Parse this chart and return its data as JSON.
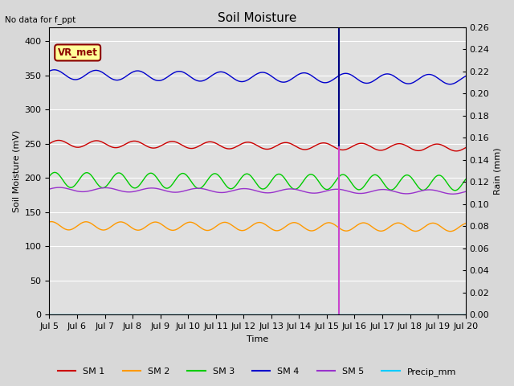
{
  "title": "Soil Moisture",
  "no_data_text": "No data for f_ppt",
  "vr_met_label": "VR_met",
  "xlabel": "Time",
  "ylabel_left": "Soil Moisture (mV)",
  "ylabel_right": "Rain (mm)",
  "xlim_days": [
    5,
    20
  ],
  "ylim_left": [
    0,
    420
  ],
  "ylim_right": [
    0,
    0.26
  ],
  "yticks_left": [
    0,
    50,
    100,
    150,
    200,
    250,
    300,
    350,
    400
  ],
  "yticks_right": [
    0.0,
    0.02,
    0.04,
    0.06,
    0.08,
    0.1,
    0.12,
    0.14,
    0.16,
    0.18,
    0.2,
    0.22,
    0.24,
    0.26
  ],
  "xtick_positions": [
    5,
    6,
    7,
    8,
    9,
    10,
    11,
    12,
    13,
    14,
    15,
    16,
    17,
    18,
    19,
    20
  ],
  "xtick_labels": [
    "Jul 5",
    "Jul 6",
    "Jul 7",
    "Jul 8",
    "Jul 9",
    "Jul 10",
    "Jul 11",
    "Jul 12",
    "Jul 13",
    "Jul 14",
    "Jul 15",
    "Jul 16",
    "Jul 17",
    "Jul 18",
    "Jul 19",
    "Jul 20"
  ],
  "vline_day": 15.45,
  "fig_facecolor": "#d8d8d8",
  "plot_facecolor": "#e0e0e0",
  "grid_color": "#ffffff",
  "series": {
    "SM1": {
      "base": 250,
      "amplitude": 5,
      "cycles": 11,
      "phase": 0.0,
      "color": "#cc0000",
      "label": "SM 1",
      "trend": -0.4
    },
    "SM2": {
      "base": 130,
      "amplitude": 6,
      "cycles": 12,
      "phase": 1.2,
      "color": "#ff9900",
      "label": "SM 2",
      "trend": -0.15
    },
    "SM3": {
      "base": 197,
      "amplitude": 11,
      "cycles": 13,
      "phase": 0.5,
      "color": "#00cc00",
      "label": "SM 3",
      "trend": -0.3
    },
    "SM4": {
      "base": 351,
      "amplitude": 7,
      "cycles": 10,
      "phase": 0.8,
      "color": "#0000cc",
      "label": "SM 4",
      "trend": -0.5
    },
    "SM5": {
      "base": 183,
      "amplitude": 3,
      "cycles": 9,
      "phase": 0.2,
      "color": "#9933cc",
      "label": "SM 5",
      "trend": -0.25
    }
  },
  "precip_color": "#00CCFF",
  "precip_label": "Precip_mm",
  "legend_fontsize": 8,
  "title_fontsize": 11,
  "axis_label_fontsize": 8,
  "tick_fontsize": 8
}
